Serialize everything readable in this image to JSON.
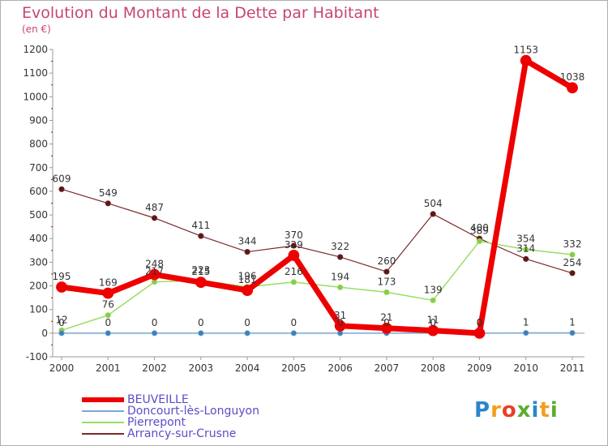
{
  "header": {
    "title": "Evolution du Montant de la Dette par Habitant",
    "unit": "(en €)"
  },
  "logo": {
    "text": "Proxiti",
    "letters": [
      {
        "ch": "P",
        "color": "#2a86c8"
      },
      {
        "ch": "r",
        "color": "#f0a020"
      },
      {
        "ch": "o",
        "color": "#e8402a"
      },
      {
        "ch": "x",
        "color": "#5aae32"
      },
      {
        "ch": "i",
        "color": "#2a86c8"
      },
      {
        "ch": "t",
        "color": "#f0a020"
      },
      {
        "ch": "i",
        "color": "#5aae32"
      }
    ]
  },
  "chart_data": {
    "type": "line",
    "x": [
      "2000",
      "2001",
      "2002",
      "2003",
      "2004",
      "2005",
      "2006",
      "2007",
      "2008",
      "2009",
      "2010",
      "2011"
    ],
    "ylim": [
      -100,
      1200
    ],
    "yticks": [
      -100,
      0,
      100,
      200,
      300,
      400,
      500,
      600,
      700,
      800,
      900,
      1000,
      1100,
      1200
    ],
    "grid": false,
    "legend_position": "bottom-left",
    "series": [
      {
        "name": "BEUVEILLE",
        "color": "#ee0000",
        "values": [
          195,
          169,
          248,
          215,
          181,
          329,
          31,
          21,
          11,
          0,
          1153,
          1038
        ]
      },
      {
        "name": "Doncourt-lès-Longuyon",
        "color": "#7aa6d4",
        "values": [
          0,
          0,
          0,
          0,
          0,
          0,
          0,
          0,
          0,
          0,
          1,
          1
        ]
      },
      {
        "name": "Pierrepont",
        "color": "#99dd66",
        "values": [
          12,
          76,
          217,
          223,
          196,
          216,
          194,
          173,
          139,
          389,
          354,
          332
        ]
      },
      {
        "name": "Arrancy-sur-Crusne",
        "color": "#7a2a2a",
        "values": [
          609,
          549,
          487,
          411,
          344,
          370,
          322,
          260,
          504,
          400,
          314,
          254
        ]
      }
    ]
  }
}
